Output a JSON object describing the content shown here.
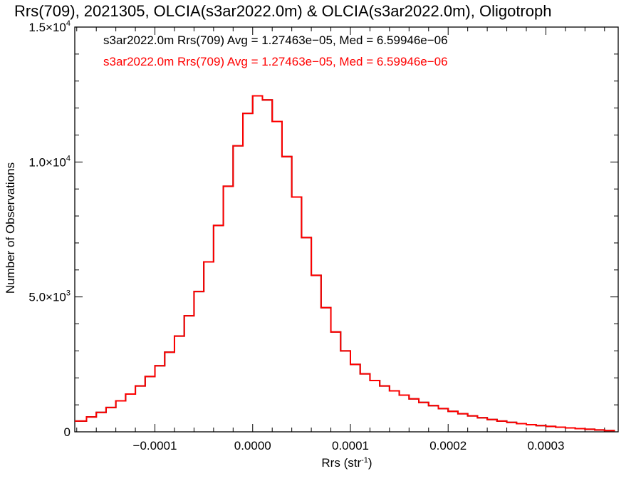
{
  "chart_data": {
    "type": "line",
    "title": "Rrs(709), 2021305, OLCIA(s3ar2022.0m) & OLCIA(s3ar2022.0m), Oligotroph",
    "xlabel": "Rrs (str",
    "xlabel_sup": "-1",
    "xlabel_end": ")",
    "ylabel": "Number of Observations",
    "xlim": [
      -0.000182,
      0.000374
    ],
    "ylim": [
      0,
      15000
    ],
    "grid": false,
    "legend_position": "top-left",
    "x_ticks": [
      {
        "value": -0.0001,
        "label": "−0.0001"
      },
      {
        "value": 0.0,
        "label": "0.0000"
      },
      {
        "value": 0.0001,
        "label": "0.0001"
      },
      {
        "value": 0.0002,
        "label": "0.0002"
      },
      {
        "value": 0.0003,
        "label": "0.0003"
      }
    ],
    "y_ticks": [
      {
        "value": 0,
        "mant": "0",
        "exp": ""
      },
      {
        "value": 5000,
        "mant": "5.0×10",
        "exp": "3"
      },
      {
        "value": 10000,
        "mant": "1.0×10",
        "exp": "4"
      },
      {
        "value": 15000,
        "mant": "1.5×10",
        "exp": "4"
      }
    ],
    "series": [
      {
        "name": "s3ar2022.0m Rrs(709) Avg = 1.27463e−05, Med = 6.59946e−06",
        "color": "#000000",
        "x": [
          -0.000182,
          -0.00017,
          -0.00016,
          -0.00015,
          -0.00014,
          -0.00013,
          -0.00012,
          -0.00011,
          -0.0001,
          -9e-05,
          -8e-05,
          -7e-05,
          -6e-05,
          -5e-05,
          -4e-05,
          -3e-05,
          -2e-05,
          -1e-05,
          0.0,
          1e-05,
          2e-05,
          3e-05,
          4e-05,
          5e-05,
          6e-05,
          7e-05,
          8e-05,
          9e-05,
          0.0001,
          0.00011,
          0.00012,
          0.00013,
          0.00014,
          0.00015,
          0.00016,
          0.00017,
          0.00018,
          0.00019,
          0.0002,
          0.00021,
          0.00022,
          0.00023,
          0.00024,
          0.00025,
          0.00026,
          0.00027,
          0.00028,
          0.00029,
          0.0003,
          0.00031,
          0.00032,
          0.00033,
          0.00034,
          0.00035,
          0.00036,
          0.00037
        ],
        "y": [
          400,
          550,
          720,
          900,
          1150,
          1400,
          1700,
          2050,
          2450,
          2950,
          3550,
          4300,
          5200,
          6300,
          7650,
          9100,
          10600,
          11800,
          12450,
          12300,
          11500,
          10200,
          8700,
          7200,
          5800,
          4600,
          3700,
          3000,
          2500,
          2150,
          1900,
          1700,
          1520,
          1360,
          1220,
          1090,
          970,
          860,
          760,
          670,
          590,
          520,
          455,
          400,
          350,
          305,
          265,
          230,
          200,
          170,
          145,
          120,
          95,
          70,
          45,
          20
        ]
      },
      {
        "name": "s3ar2022.0m Rrs(709) Avg = 1.27463e−05, Med = 6.59946e−06",
        "color": "#ff0000",
        "x": [
          -0.000182,
          -0.00017,
          -0.00016,
          -0.00015,
          -0.00014,
          -0.00013,
          -0.00012,
          -0.00011,
          -0.0001,
          -9e-05,
          -8e-05,
          -7e-05,
          -6e-05,
          -5e-05,
          -4e-05,
          -3e-05,
          -2e-05,
          -1e-05,
          0.0,
          1e-05,
          2e-05,
          3e-05,
          4e-05,
          5e-05,
          6e-05,
          7e-05,
          8e-05,
          9e-05,
          0.0001,
          0.00011,
          0.00012,
          0.00013,
          0.00014,
          0.00015,
          0.00016,
          0.00017,
          0.00018,
          0.00019,
          0.0002,
          0.00021,
          0.00022,
          0.00023,
          0.00024,
          0.00025,
          0.00026,
          0.00027,
          0.00028,
          0.00029,
          0.0003,
          0.00031,
          0.00032,
          0.00033,
          0.00034,
          0.00035,
          0.00036,
          0.00037
        ],
        "y": [
          400,
          550,
          720,
          900,
          1150,
          1400,
          1700,
          2050,
          2450,
          2950,
          3550,
          4300,
          5200,
          6300,
          7650,
          9100,
          10600,
          11800,
          12450,
          12300,
          11500,
          10200,
          8700,
          7200,
          5800,
          4600,
          3700,
          3000,
          2500,
          2150,
          1900,
          1700,
          1520,
          1360,
          1220,
          1090,
          970,
          860,
          760,
          670,
          590,
          520,
          455,
          400,
          350,
          305,
          265,
          230,
          200,
          170,
          145,
          120,
          95,
          70,
          45,
          20
        ]
      }
    ]
  }
}
